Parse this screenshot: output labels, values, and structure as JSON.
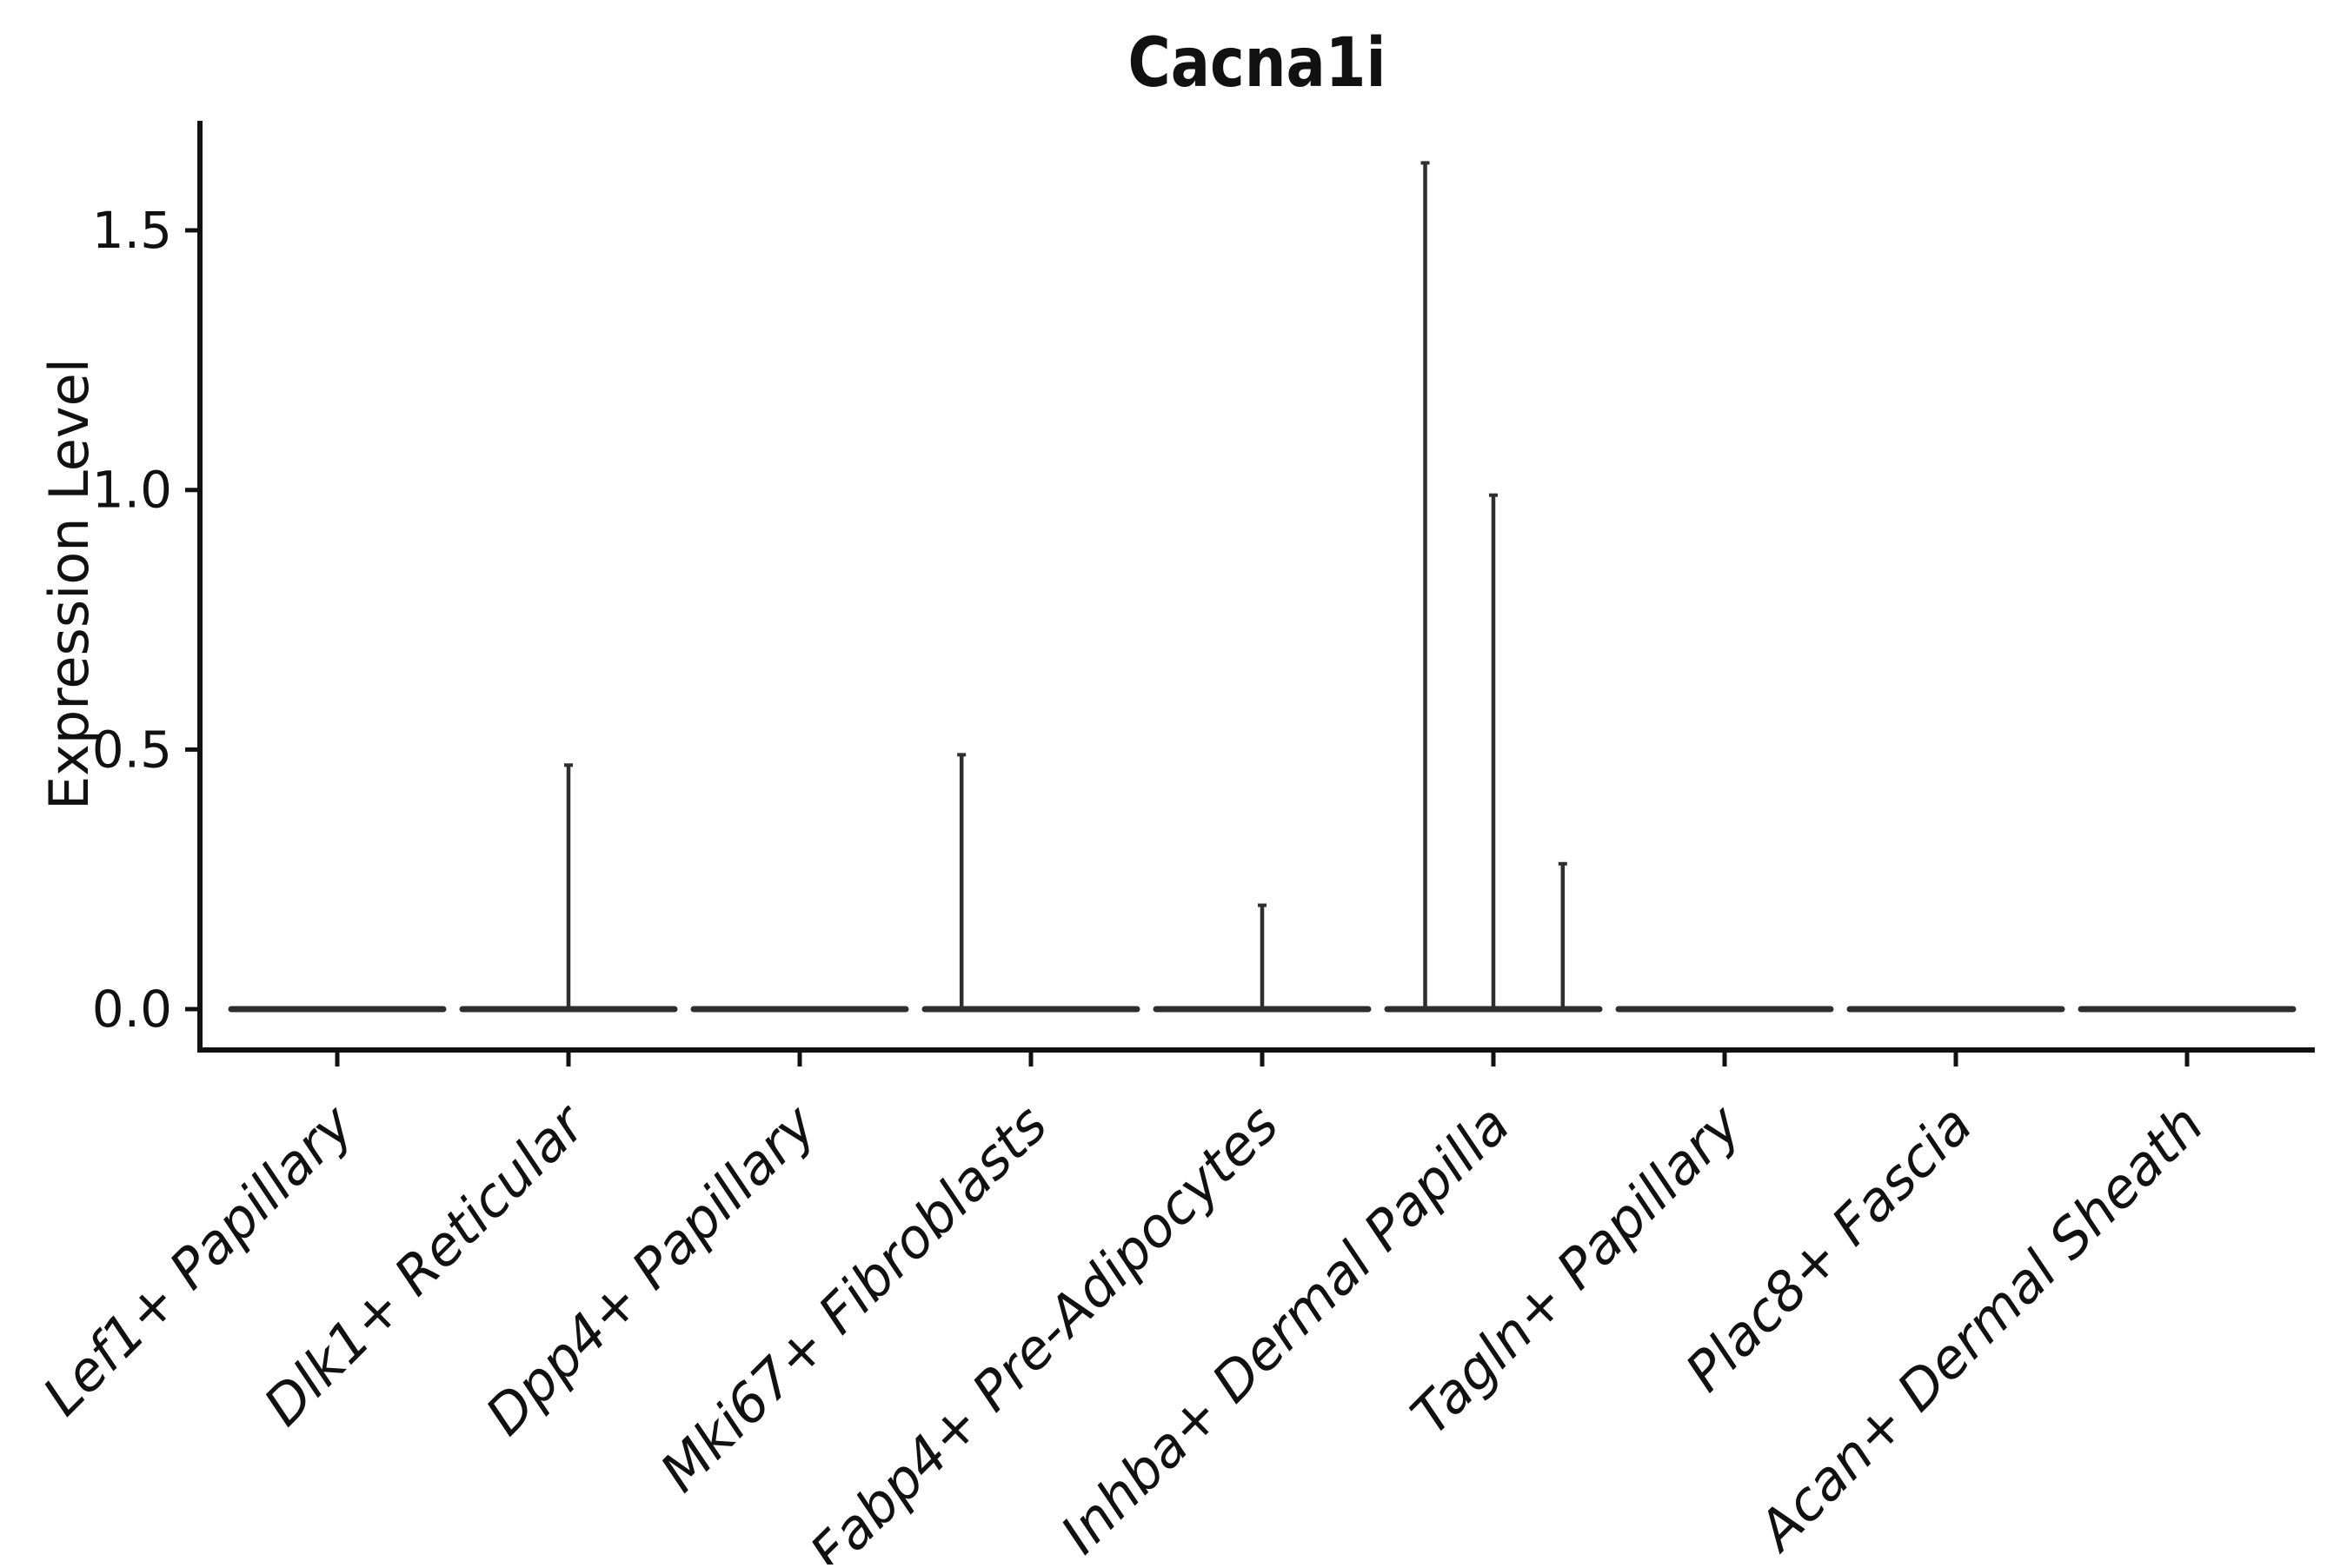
{
  "figure": {
    "background": "#ffffff"
  },
  "chart_data": {
    "type": "violin",
    "title": "Cacna1i",
    "ylabel": "Expression Level",
    "xlabel": "",
    "ytick_labels": [
      "0.0",
      "0.5",
      "1.0",
      "1.5"
    ],
    "ylim": [
      -0.08,
      1.71
    ],
    "grid": false,
    "legend": null,
    "x_tick_rotation_deg": 45,
    "categories": [
      "Lef1+ Papillary",
      "Dlk1+ Reticular",
      "Dpp4+ Papillary",
      "Mki67+ Fibroblasts",
      "Fabp4+ Pre-Adipocytes",
      "Inhba+ Dermal Papilla",
      "Tagln+ Papillary",
      "Plac8+ Fascia",
      "Acan+ Dermal Sheath"
    ],
    "violins": [
      {
        "category": "Lef1+ Papillary",
        "baseline_value": 0.0,
        "spikes": []
      },
      {
        "category": "Dlk1+ Reticular",
        "baseline_value": 0.0,
        "spikes": [
          {
            "offset_frac": 0.0,
            "max_value": 0.47
          }
        ]
      },
      {
        "category": "Dpp4+ Papillary",
        "baseline_value": 0.0,
        "spikes": []
      },
      {
        "category": "Mki67+ Fibroblasts",
        "baseline_value": 0.0,
        "spikes": [
          {
            "offset_frac": -0.3,
            "max_value": 0.49
          }
        ]
      },
      {
        "category": "Fabp4+ Pre-Adipocytes",
        "baseline_value": 0.0,
        "spikes": [
          {
            "offset_frac": 0.0,
            "max_value": 0.2
          }
        ]
      },
      {
        "category": "Inhba+ Dermal Papilla",
        "baseline_value": 0.0,
        "spikes": [
          {
            "offset_frac": -0.295,
            "max_value": 1.63
          },
          {
            "offset_frac": 0.0,
            "max_value": 0.99
          },
          {
            "offset_frac": 0.3,
            "max_value": 0.28
          }
        ]
      },
      {
        "category": "Tagln+ Papillary",
        "baseline_value": 0.0,
        "spikes": []
      },
      {
        "category": "Plac8+ Fascia",
        "baseline_value": 0.0,
        "spikes": []
      },
      {
        "category": "Acan+ Dermal Sheath",
        "baseline_value": 0.0,
        "spikes": []
      }
    ],
    "colors": {
      "violin_line": "#2e2e2e",
      "axis": "#111111",
      "text": "#111111"
    }
  }
}
